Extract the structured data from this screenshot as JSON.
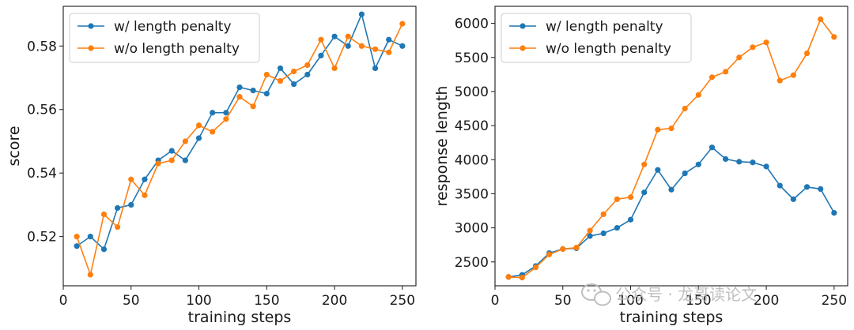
{
  "colors": {
    "with_penalty": "#1f77b4",
    "without_penalty": "#ff7f0e",
    "axis": "#1a1a1a",
    "watermark": "#b9b9b9"
  },
  "watermark": {
    "text": "公众号 · 龙哥读论文",
    "icon": "wechat-icon"
  },
  "chart_data": [
    {
      "type": "line",
      "title": "",
      "xlabel": "training steps",
      "ylabel": "score",
      "xlim": [
        0,
        260
      ],
      "ylim": [
        0.5045,
        0.5925
      ],
      "xticks": [
        0,
        50,
        100,
        150,
        200,
        250
      ],
      "yticks": [
        0.52,
        0.54,
        0.56,
        0.58
      ],
      "ytick_labels": [
        "0.52",
        "0.54",
        "0.56",
        "0.58"
      ],
      "x": [
        10,
        20,
        30,
        40,
        50,
        60,
        70,
        80,
        90,
        100,
        110,
        120,
        130,
        140,
        150,
        160,
        170,
        180,
        190,
        200,
        210,
        220,
        230,
        240,
        250
      ],
      "legend_position": "upper-left",
      "series": [
        {
          "name": "w/ length penalty",
          "color_key": "with_penalty",
          "values": [
            0.517,
            0.52,
            0.516,
            0.529,
            0.53,
            0.538,
            0.544,
            0.547,
            0.544,
            0.551,
            0.559,
            0.559,
            0.567,
            0.566,
            0.565,
            0.573,
            0.568,
            0.571,
            0.577,
            0.583,
            0.58,
            0.59,
            0.573,
            0.582,
            0.58
          ]
        },
        {
          "name": "w/o length penalty",
          "color_key": "without_penalty",
          "values": [
            0.52,
            0.508,
            0.527,
            0.523,
            0.538,
            0.533,
            0.543,
            0.544,
            0.55,
            0.555,
            0.553,
            0.557,
            0.564,
            0.561,
            0.571,
            0.569,
            0.572,
            0.574,
            0.582,
            0.573,
            0.583,
            0.58,
            0.579,
            0.578,
            0.587
          ]
        }
      ]
    },
    {
      "type": "line",
      "title": "",
      "xlabel": "training steps",
      "ylabel": "response length",
      "xlim": [
        0,
        260
      ],
      "ylim": [
        2150,
        6250
      ],
      "xticks": [
        0,
        50,
        100,
        150,
        200,
        250
      ],
      "yticks": [
        2500,
        3000,
        3500,
        4000,
        4500,
        5000,
        5500,
        6000
      ],
      "ytick_labels": [
        "2500",
        "3000",
        "3500",
        "4000",
        "4500",
        "5000",
        "5500",
        "6000"
      ],
      "x": [
        10,
        20,
        30,
        40,
        50,
        60,
        70,
        80,
        90,
        100,
        110,
        120,
        130,
        140,
        150,
        160,
        170,
        180,
        190,
        200,
        210,
        220,
        230,
        240,
        250
      ],
      "legend_position": "upper-left",
      "series": [
        {
          "name": "w/ length penalty",
          "color_key": "with_penalty",
          "values": [
            2280,
            2310,
            2440,
            2630,
            2690,
            2700,
            2880,
            2920,
            3000,
            3120,
            3520,
            3850,
            3560,
            3800,
            3930,
            4180,
            4010,
            3970,
            3960,
            3900,
            3620,
            3420,
            3600,
            3570,
            3220
          ]
        },
        {
          "name": "w/o length penalty",
          "color_key": "without_penalty",
          "values": [
            2280,
            2270,
            2420,
            2610,
            2690,
            2710,
            2960,
            3200,
            3420,
            3450,
            3930,
            4440,
            4460,
            4750,
            4950,
            5210,
            5290,
            5500,
            5650,
            5720,
            5160,
            5240,
            5560,
            6060,
            5800
          ]
        }
      ]
    }
  ]
}
